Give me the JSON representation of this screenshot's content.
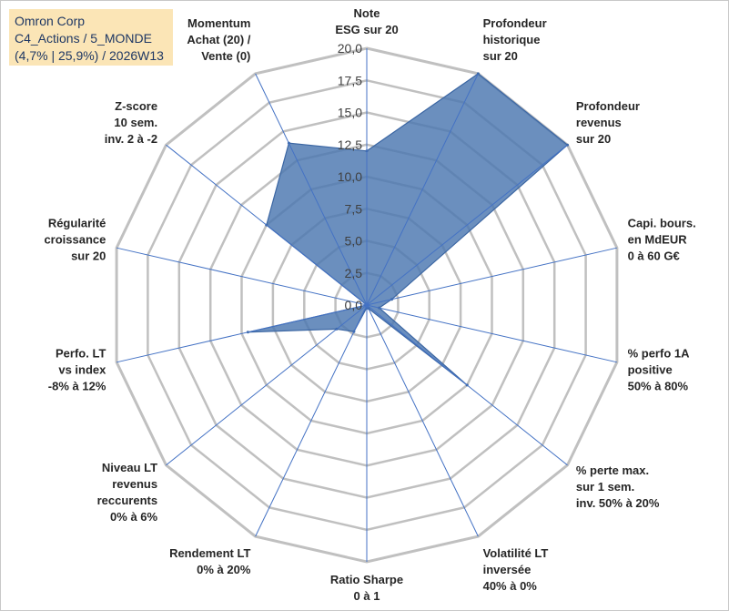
{
  "header": {
    "company": "Omron Corp",
    "portfolio": "C4_Actions / 5_MONDE",
    "stats": "(4,7% | 25,9%) / 2026W13"
  },
  "colors": {
    "fill": "#4a76b0",
    "stroke": "#3b66a3",
    "grid": "#c0c0c0",
    "spoke": "#4472c4",
    "info_bg": "#fbe5b6",
    "info_text": "#1f3864"
  },
  "chart_data": {
    "type": "radar",
    "ylim": [
      0,
      20
    ],
    "tick_labels": [
      "0,0",
      "2,5",
      "5,0",
      "7,5",
      "10,0",
      "12,5",
      "15,0",
      "17,5",
      "20,0"
    ],
    "tick_values": [
      0,
      2.5,
      5,
      7.5,
      10,
      12.5,
      15,
      17.5,
      20
    ],
    "categories": [
      [
        "Note",
        "ESG sur 20"
      ],
      [
        "Profondeur",
        "historique",
        "sur 20"
      ],
      [
        "Profondeur",
        "revenus",
        "sur 20"
      ],
      [
        "Capi. bours.",
        "en MdEUR",
        "0 à 60 G€"
      ],
      [
        "% perfo 1A",
        "positive",
        "50% à 80%"
      ],
      [
        "% perte max.",
        "sur 1 sem.",
        "inv. 50% à 20%"
      ],
      [
        "Volatilité LT",
        "inversée",
        "40% à 0%"
      ],
      [
        "Ratio Sharpe",
        "0 à 1"
      ],
      [
        "Rendement LT",
        "0% à 20%"
      ],
      [
        "Niveau LT",
        "revenus",
        "reccurents",
        "0% à 6%"
      ],
      [
        "Perfo. LT",
        "vs index",
        "-8% à 12%"
      ],
      [
        "Régularité",
        "croissance",
        "sur 20"
      ],
      [
        "Z-score",
        "10 sem.",
        "inv. 2 à -2"
      ],
      [
        "Momentum",
        "Achat (20) /",
        "Vente (0)"
      ]
    ],
    "series": [
      {
        "name": "Omron Corp",
        "values": [
          12.0,
          20.0,
          20.0,
          2.0,
          1.0,
          10.0,
          0.3,
          0.2,
          2.3,
          3.0,
          9.5,
          0.0,
          10.0,
          14.0
        ]
      }
    ]
  }
}
